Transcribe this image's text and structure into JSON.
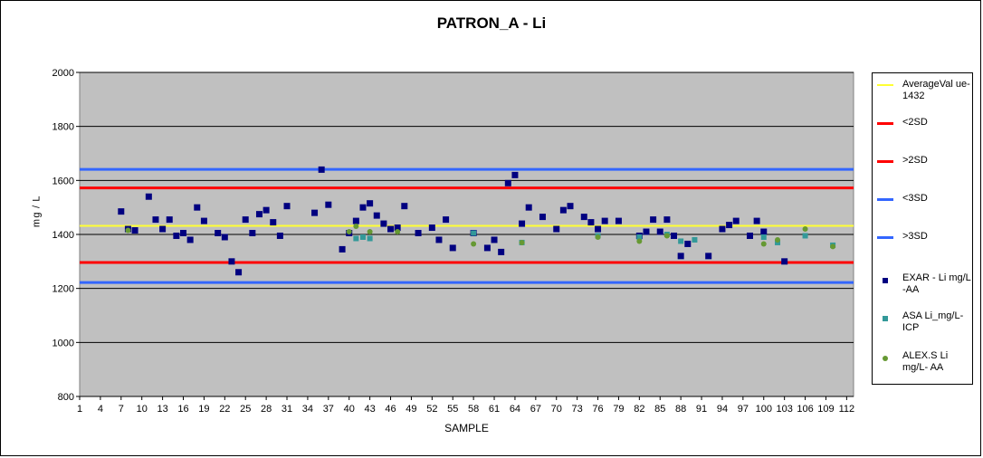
{
  "chart_data": {
    "type": "scatter",
    "title": "PATRON_A - Li",
    "xlabel": "SAMPLE",
    "ylabel": "mg/L",
    "ylim": [
      800,
      2000
    ],
    "yticks": [
      800,
      1000,
      1200,
      1400,
      1600,
      1800,
      2000
    ],
    "xlim": [
      1,
      113
    ],
    "xticks": [
      1,
      4,
      7,
      10,
      13,
      16,
      19,
      22,
      25,
      28,
      31,
      34,
      37,
      40,
      43,
      46,
      49,
      52,
      55,
      58,
      61,
      64,
      67,
      70,
      73,
      76,
      79,
      82,
      85,
      88,
      91,
      94,
      97,
      100,
      103,
      106,
      109,
      112
    ],
    "grid": "horizontal",
    "legend_position": "right",
    "reference_lines": [
      {
        "name": "AverageValue-1432",
        "label": "AverageVal ue-1432",
        "value": 1432,
        "color": "#ffff33",
        "width": 2
      },
      {
        "name": "<2SD",
        "label": "<2SD",
        "value": 1296,
        "color": "#ff0000",
        "width": 3
      },
      {
        "name": ">2SD",
        "label": ">2SD",
        "value": 1572,
        "color": "#ff0000",
        "width": 3
      },
      {
        "name": "<3SD",
        "label": "<3SD",
        "value": 1222,
        "color": "#3366ff",
        "width": 3
      },
      {
        "name": ">3SD",
        "label": ">3SD",
        "value": 1641,
        "color": "#3366ff",
        "width": 3
      }
    ],
    "series": [
      {
        "name": "EXAR - Li mg/L -AA",
        "label": "EXAR - Li mg/L -AA",
        "color": "#000080",
        "marker": "square",
        "x": [
          7,
          8,
          9,
          11,
          12,
          13,
          14,
          15,
          16,
          17,
          18,
          19,
          21,
          22,
          23,
          24,
          25,
          26,
          27,
          28,
          29,
          30,
          31,
          35,
          36,
          37,
          39,
          40,
          41,
          42,
          43,
          44,
          45,
          46,
          47,
          48,
          50,
          52,
          53,
          54,
          55,
          58,
          60,
          61,
          62,
          63,
          64,
          65,
          66,
          68,
          70,
          71,
          72,
          74,
          75,
          76,
          77,
          79,
          82,
          83,
          84,
          85,
          86,
          87,
          88,
          89,
          92,
          94,
          95,
          96,
          98,
          99,
          100,
          103
        ],
        "y": [
          1485,
          1420,
          1415,
          1540,
          1455,
          1420,
          1455,
          1395,
          1405,
          1380,
          1500,
          1450,
          1405,
          1390,
          1300,
          1260,
          1455,
          1405,
          1475,
          1490,
          1445,
          1395,
          1505,
          1480,
          1640,
          1510,
          1345,
          1405,
          1450,
          1500,
          1515,
          1470,
          1440,
          1420,
          1425,
          1505,
          1405,
          1425,
          1380,
          1455,
          1350,
          1405,
          1350,
          1380,
          1335,
          1590,
          1620,
          1440,
          1500,
          1465,
          1420,
          1490,
          1505,
          1465,
          1445,
          1420,
          1450,
          1450,
          1395,
          1410,
          1455,
          1410,
          1455,
          1395,
          1320,
          1365,
          1320,
          1420,
          1435,
          1450,
          1395,
          1450,
          1410,
          1300
        ]
      },
      {
        "name": "ASA Li_mg/L-ICP",
        "label": "ASA Li_mg/L-ICP",
        "color": "#339999",
        "marker": "square",
        "x": [
          41,
          42,
          43,
          58,
          65,
          76,
          82,
          86,
          88,
          90,
          100,
          102,
          106,
          110
        ],
        "y": [
          1385,
          1390,
          1385,
          1405,
          1370,
          1395,
          1390,
          1400,
          1375,
          1380,
          1390,
          1370,
          1395,
          1360
        ]
      },
      {
        "name": "ALEX.S Li mg/L- AA",
        "label": "ALEX.S Li mg/L- AA",
        "color": "#669933",
        "marker": "circle",
        "x": [
          8,
          40,
          41,
          43,
          47,
          58,
          65,
          76,
          82,
          86,
          100,
          102,
          106,
          110
        ],
        "y": [
          1415,
          1410,
          1430,
          1410,
          1410,
          1365,
          1370,
          1390,
          1375,
          1395,
          1365,
          1380,
          1420,
          1355
        ]
      }
    ]
  }
}
